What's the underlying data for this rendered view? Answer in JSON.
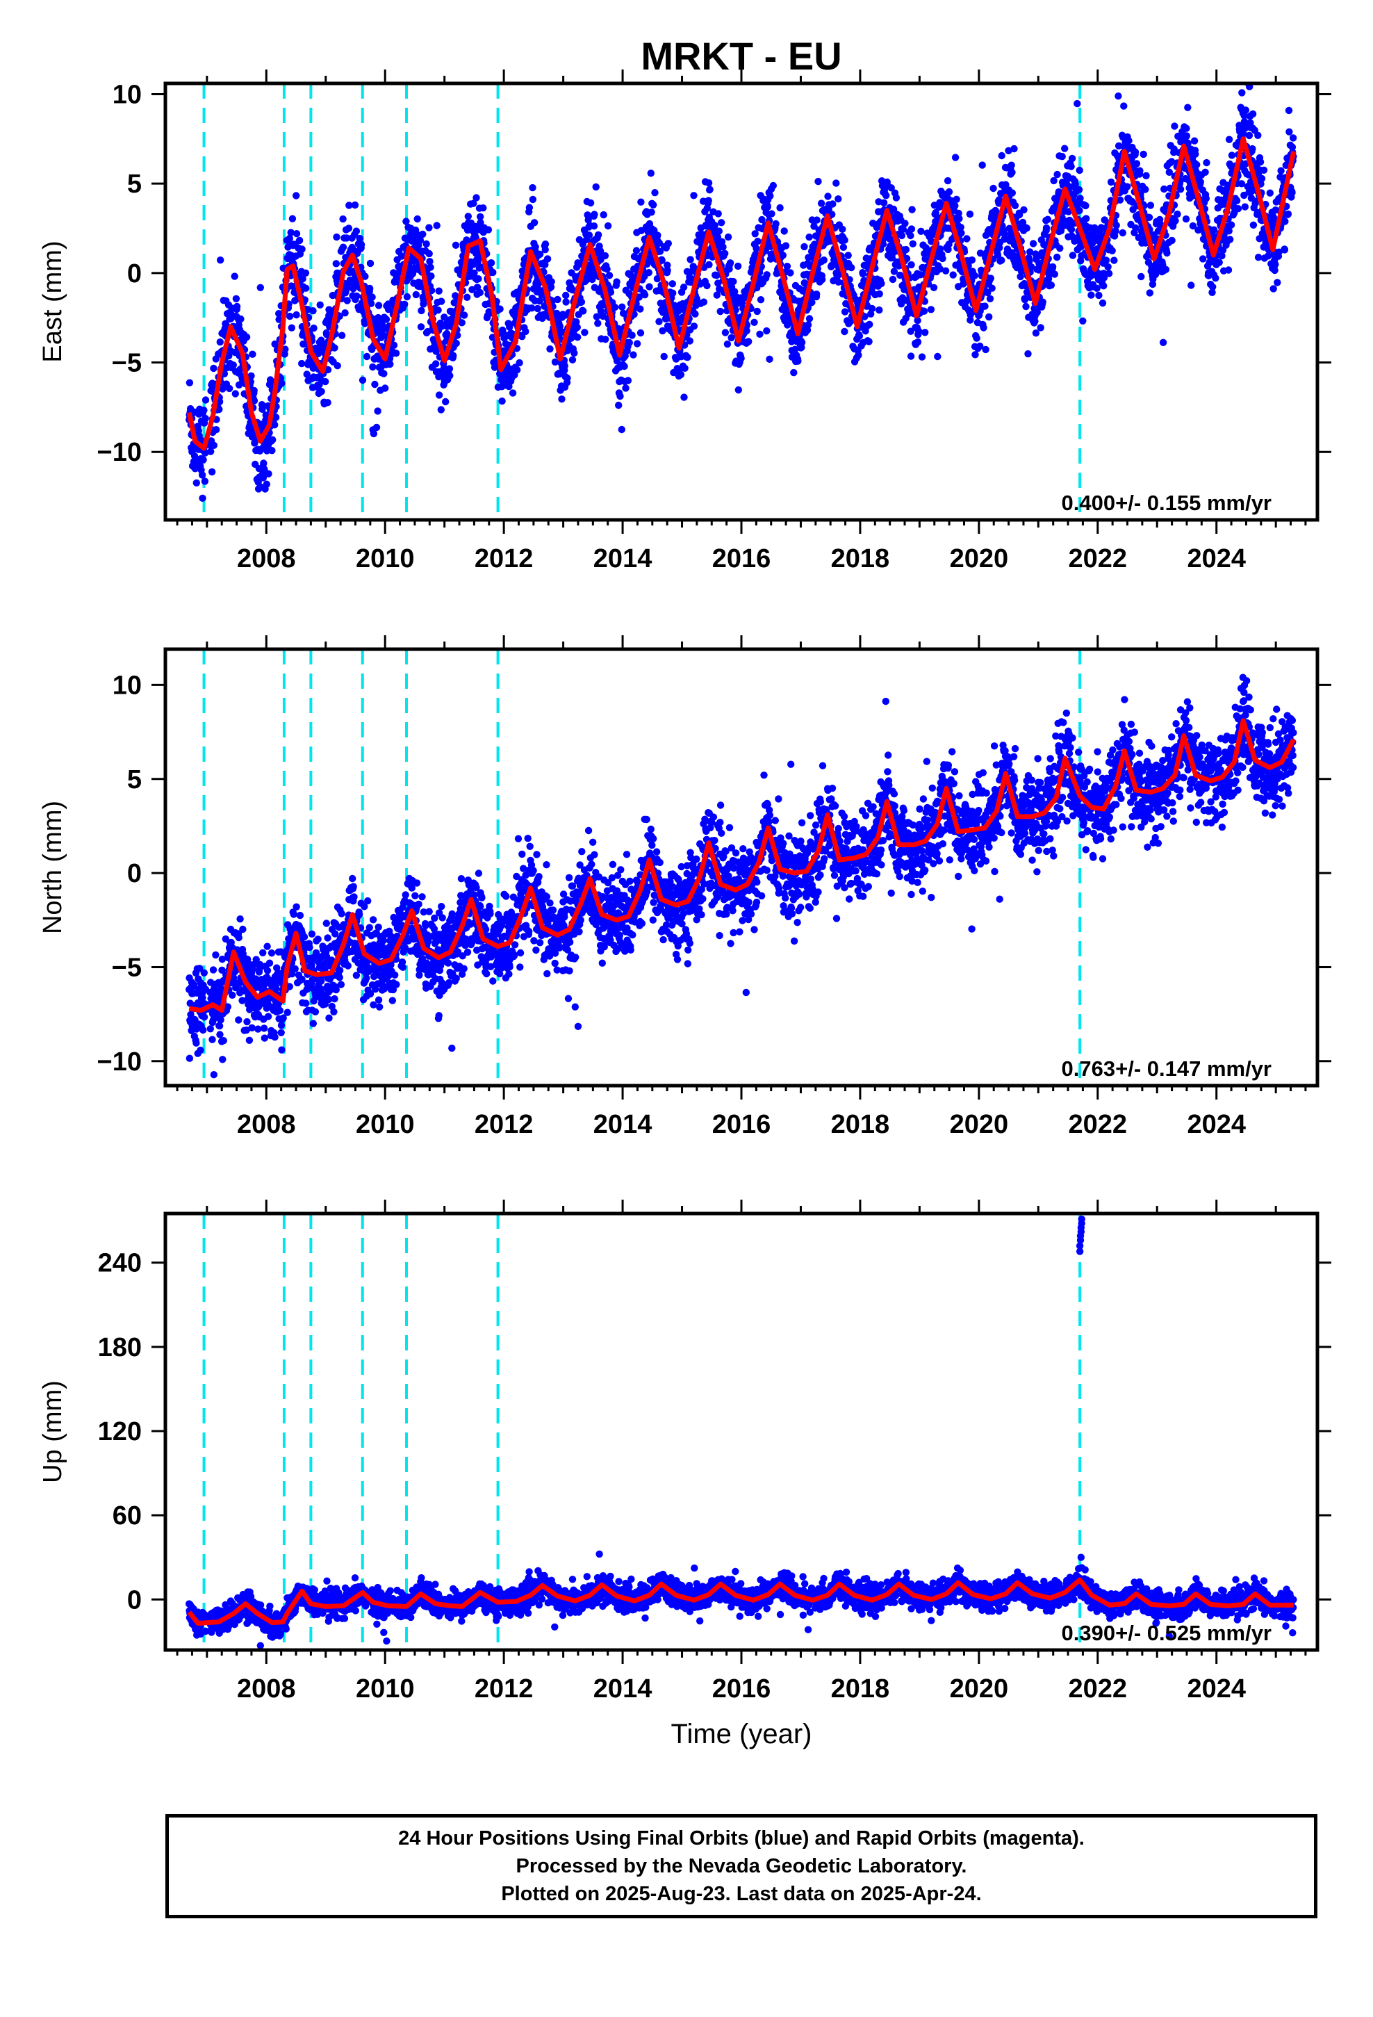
{
  "colors": {
    "points": "#0000ff",
    "fit": "#ff0000",
    "events": "#00e5ee",
    "frame": "#000000"
  },
  "chart_data": [
    {
      "type": "scatter",
      "title": "MRKT - EU",
      "ylabel": "East (mm)",
      "xlabel": "",
      "xlim": [
        2006.3,
        2025.7
      ],
      "ylim": [
        -13.8,
        10.6
      ],
      "x_ticks": [
        2008,
        2010,
        2012,
        2014,
        2016,
        2018,
        2020,
        2022,
        2024
      ],
      "y_ticks": [
        -10,
        -5,
        0,
        5,
        10
      ],
      "y_tick_labels": [
        "−10",
        "−5",
        "0",
        "5",
        "10"
      ],
      "event_lines_x": [
        2006.95,
        2008.3,
        2008.75,
        2009.62,
        2010.36,
        2011.9,
        2021.7
      ],
      "rate_label": "0.400+/- 0.155 mm/yr",
      "series": [
        {
          "role": "daily positions (blue)",
          "trend": [
            [
              2006.7,
              -7.2
            ],
            [
              2008.1,
              -4.5
            ],
            [
              2008.3,
              -2.0
            ],
            [
              2012.0,
              -1.5
            ],
            [
              2018.0,
              0.5
            ],
            [
              2021.7,
              2.6
            ],
            [
              2022.0,
              3.6
            ],
            [
              2025.3,
              4.6
            ]
          ],
          "amplitude": 3.6,
          "scatter_sd": 1.3,
          "n_points": 4200
        },
        {
          "role": "model fit (red)",
          "x": [
            2006.7,
            2006.8,
            2006.95,
            2007.1,
            2007.25,
            2007.4,
            2007.6,
            2007.75,
            2007.9,
            2008.05,
            2008.15,
            2008.28,
            2008.35,
            2008.45,
            2008.6,
            2008.75,
            2008.95,
            2009.1,
            2009.3,
            2009.45,
            2009.6,
            2009.8,
            2010.0,
            2010.2,
            2010.4,
            2010.6,
            2010.8,
            2011.0,
            2011.2,
            2011.4,
            2011.6,
            2011.8,
            2011.95,
            2012.2,
            2012.45,
            2012.7,
            2012.95,
            2013.2,
            2013.45,
            2013.7,
            2013.95,
            2014.2,
            2014.45,
            2014.7,
            2014.95,
            2015.2,
            2015.45,
            2015.7,
            2015.95,
            2016.2,
            2016.45,
            2016.7,
            2016.95,
            2017.2,
            2017.45,
            2017.7,
            2017.95,
            2018.2,
            2018.45,
            2018.7,
            2018.95,
            2019.2,
            2019.45,
            2019.7,
            2019.95,
            2020.2,
            2020.45,
            2020.7,
            2020.95,
            2021.2,
            2021.45,
            2021.7,
            2021.95,
            2022.2,
            2022.45,
            2022.7,
            2022.95,
            2023.2,
            2023.45,
            2023.7,
            2023.95,
            2024.2,
            2024.45,
            2024.7,
            2024.95,
            2025.3
          ],
          "y": [
            -7.8,
            -9.4,
            -9.8,
            -8.0,
            -5.0,
            -3.0,
            -4.5,
            -7.8,
            -9.4,
            -8.5,
            -6.5,
            -3.0,
            0.2,
            0.4,
            -1.8,
            -4.4,
            -5.5,
            -3.5,
            0.1,
            1.0,
            -0.5,
            -3.7,
            -4.8,
            -1.8,
            1.4,
            0.8,
            -2.6,
            -4.9,
            -2.8,
            1.5,
            1.8,
            -1.3,
            -5.4,
            -3.8,
            1.2,
            -0.8,
            -4.8,
            -1.5,
            1.6,
            -0.9,
            -4.6,
            -1.2,
            2.0,
            -0.6,
            -4.2,
            -0.9,
            2.3,
            -0.3,
            -3.8,
            -0.6,
            2.8,
            -0.2,
            -3.4,
            0.0,
            3.2,
            0.2,
            -3.0,
            0.3,
            3.5,
            0.8,
            -2.4,
            0.8,
            3.9,
            1.1,
            -2.1,
            1.1,
            4.3,
            1.4,
            -1.7,
            1.6,
            4.7,
            2.5,
            0.2,
            2.5,
            6.8,
            3.9,
            0.8,
            3.3,
            7.1,
            4.1,
            1.0,
            3.7,
            7.5,
            4.6,
            1.3,
            6.8
          ]
        }
      ]
    },
    {
      "type": "scatter",
      "title": "",
      "ylabel": "North (mm)",
      "xlabel": "",
      "xlim": [
        2006.3,
        2025.7
      ],
      "ylim": [
        -11.3,
        11.9
      ],
      "x_ticks": [
        2008,
        2010,
        2012,
        2014,
        2016,
        2018,
        2020,
        2022,
        2024
      ],
      "y_ticks": [
        -10,
        -5,
        0,
        5,
        10
      ],
      "y_tick_labels": [
        "−10",
        "−5",
        "0",
        "5",
        "10"
      ],
      "event_lines_x": [
        2006.95,
        2008.3,
        2008.75,
        2009.62,
        2010.36,
        2011.9,
        2021.7
      ],
      "rate_label": "0.763+/- 0.147 mm/yr",
      "series": [
        {
          "role": "daily positions (blue)",
          "trend": [
            [
              2006.7,
              -7.1
            ],
            [
              2008.3,
              -6.2
            ],
            [
              2008.35,
              -4.6
            ],
            [
              2012.0,
              -3.2
            ],
            [
              2016.0,
              -0.3
            ],
            [
              2020.0,
              2.6
            ],
            [
              2021.7,
              3.6
            ],
            [
              2025.3,
              5.8
            ]
          ],
          "amplitude": 0.9,
          "scatter_sd": 1.1,
          "n_points": 4200
        },
        {
          "role": "model fit (red)",
          "x": [
            2006.7,
            2006.9,
            2007.1,
            2007.25,
            2007.45,
            2007.65,
            2007.85,
            2008.05,
            2008.28,
            2008.35,
            2008.5,
            2008.65,
            2008.85,
            2009.1,
            2009.3,
            2009.45,
            2009.65,
            2009.9,
            2010.1,
            2010.3,
            2010.45,
            2010.65,
            2010.9,
            2011.1,
            2011.3,
            2011.45,
            2011.65,
            2011.9,
            2012.1,
            2012.3,
            2012.45,
            2012.65,
            2012.9,
            2013.1,
            2013.3,
            2013.45,
            2013.65,
            2013.9,
            2014.1,
            2014.3,
            2014.45,
            2014.65,
            2014.9,
            2015.1,
            2015.3,
            2015.45,
            2015.65,
            2015.9,
            2016.1,
            2016.3,
            2016.45,
            2016.65,
            2016.9,
            2017.1,
            2017.3,
            2017.45,
            2017.65,
            2017.9,
            2018.1,
            2018.3,
            2018.45,
            2018.65,
            2018.9,
            2019.1,
            2019.3,
            2019.45,
            2019.65,
            2019.9,
            2020.1,
            2020.3,
            2020.45,
            2020.65,
            2020.9,
            2021.1,
            2021.3,
            2021.45,
            2021.7,
            2021.9,
            2022.1,
            2022.3,
            2022.45,
            2022.65,
            2022.9,
            2023.1,
            2023.3,
            2023.45,
            2023.65,
            2023.9,
            2024.1,
            2024.3,
            2024.45,
            2024.65,
            2024.9,
            2025.1,
            2025.3
          ],
          "y": [
            -7.2,
            -7.3,
            -7.0,
            -7.3,
            -4.2,
            -5.8,
            -6.6,
            -6.3,
            -6.8,
            -5.0,
            -3.2,
            -5.2,
            -5.4,
            -5.3,
            -3.8,
            -2.2,
            -4.3,
            -4.8,
            -4.6,
            -3.3,
            -2.0,
            -4.0,
            -4.5,
            -4.2,
            -2.8,
            -1.4,
            -3.5,
            -3.9,
            -3.7,
            -2.2,
            -0.8,
            -2.9,
            -3.3,
            -3.0,
            -1.6,
            -0.3,
            -2.2,
            -2.5,
            -2.3,
            -0.9,
            0.7,
            -1.4,
            -1.7,
            -1.5,
            -0.2,
            1.6,
            -0.6,
            -0.9,
            -0.6,
            0.6,
            2.4,
            0.2,
            0.0,
            0.1,
            1.2,
            3.1,
            0.7,
            0.8,
            1.0,
            1.9,
            3.8,
            1.5,
            1.5,
            1.7,
            2.6,
            4.5,
            2.2,
            2.3,
            2.4,
            3.3,
            5.3,
            3.0,
            3.0,
            3.2,
            4.0,
            6.1,
            4.1,
            3.5,
            3.4,
            4.6,
            6.5,
            4.4,
            4.3,
            4.5,
            5.2,
            7.3,
            5.2,
            4.9,
            5.1,
            5.9,
            8.1,
            6.0,
            5.6,
            5.9,
            7.1
          ]
        }
      ]
    },
    {
      "type": "scatter",
      "title": "",
      "ylabel": "Up (mm)",
      "xlabel": "Time (year)",
      "xlim": [
        2006.3,
        2025.7
      ],
      "ylim": [
        -36,
        275
      ],
      "x_ticks": [
        2008,
        2010,
        2012,
        2014,
        2016,
        2018,
        2020,
        2022,
        2024
      ],
      "y_ticks": [
        0,
        60,
        120,
        180,
        240
      ],
      "y_tick_labels": [
        "0",
        "60",
        "120",
        "180",
        "240"
      ],
      "event_lines_x": [
        2006.95,
        2008.3,
        2008.75,
        2009.62,
        2010.36,
        2011.9,
        2021.7
      ],
      "rate_label": "0.390+/- 0.525 mm/yr",
      "outliers": [
        [
          2021.7,
          248
        ],
        [
          2021.7,
          252
        ],
        [
          2021.71,
          256
        ],
        [
          2021.71,
          259
        ],
        [
          2021.72,
          262
        ],
        [
          2021.72,
          265
        ],
        [
          2021.73,
          268
        ],
        [
          2021.73,
          271
        ],
        [
          2021.72,
          30
        ]
      ],
      "series": [
        {
          "role": "daily positions (blue)",
          "trend": [
            [
              2006.7,
              -8.0
            ],
            [
              2008.3,
              -4.0
            ],
            [
              2021.7,
              3.0
            ],
            [
              2025.3,
              -4.0
            ]
          ],
          "amplitude": 7.0,
          "scatter_sd": 4.5,
          "n_points": 4200
        },
        {
          "role": "model fit (red)",
          "x": [
            2006.7,
            2006.85,
            2007.0,
            2007.2,
            2007.45,
            2007.65,
            2007.85,
            2008.1,
            2008.28,
            2008.35,
            2008.6,
            2008.75,
            2009.0,
            2009.3,
            2009.62,
            2009.8,
            2010.05,
            2010.36,
            2010.6,
            2010.85,
            2011.1,
            2011.3,
            2011.6,
            2011.9,
            2012.2,
            2012.45,
            2012.65,
            2012.9,
            2013.2,
            2013.45,
            2013.65,
            2013.9,
            2014.2,
            2014.45,
            2014.65,
            2014.9,
            2015.2,
            2015.45,
            2015.65,
            2015.9,
            2016.2,
            2016.45,
            2016.65,
            2016.9,
            2017.2,
            2017.45,
            2017.65,
            2017.9,
            2018.2,
            2018.45,
            2018.65,
            2018.9,
            2019.2,
            2019.45,
            2019.65,
            2019.9,
            2020.2,
            2020.45,
            2020.65,
            2020.9,
            2021.2,
            2021.45,
            2021.7,
            2021.9,
            2022.2,
            2022.45,
            2022.65,
            2022.9,
            2023.2,
            2023.45,
            2023.65,
            2023.9,
            2024.2,
            2024.45,
            2024.65,
            2024.9,
            2025.3
          ],
          "y": [
            -9.0,
            -17.0,
            -16.5,
            -16.0,
            -10.0,
            -3.0,
            -10.0,
            -16.5,
            -16.0,
            -10.0,
            6.0,
            -3.0,
            -5.0,
            -4.5,
            5.0,
            -2.0,
            -4.5,
            -5.0,
            4.0,
            -3.0,
            -4.5,
            -5.0,
            5.0,
            -2.0,
            -1.5,
            3.0,
            10.0,
            2.5,
            -1.0,
            3.0,
            10.5,
            2.5,
            -1.0,
            3.0,
            11.0,
            3.0,
            -0.5,
            3.5,
            11.0,
            3.0,
            -0.5,
            3.5,
            11.0,
            3.0,
            -0.5,
            3.0,
            11.0,
            3.0,
            -0.5,
            3.5,
            11.0,
            3.0,
            0.0,
            4.0,
            12.0,
            3.5,
            0.5,
            4.0,
            12.0,
            4.0,
            1.0,
            5.0,
            14.0,
            3.0,
            -4.0,
            -3.0,
            4.0,
            -3.5,
            -4.5,
            -3.5,
            4.0,
            -3.5,
            -4.5,
            -3.5,
            4.0,
            -4.0,
            -4.0
          ]
        }
      ]
    }
  ],
  "footer": {
    "line1": "24 Hour Positions Using Final Orbits (blue) and Rapid Orbits (magenta).",
    "line2": "Processed by the Nevada Geodetic Laboratory.",
    "line3": "Plotted on 2025-Aug-23. Last data on 2025-Apr-24."
  }
}
